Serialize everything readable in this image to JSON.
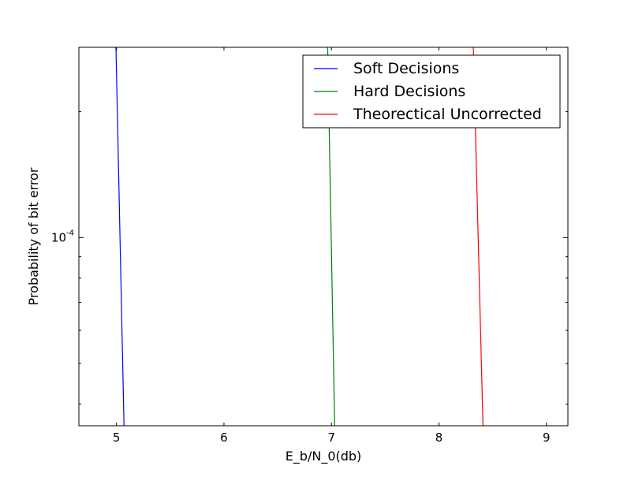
{
  "chart_data": {
    "type": "line",
    "title": "",
    "xlabel": "E_b/N_0(db)",
    "ylabel": "Probability of bit error",
    "y_scale": "log",
    "xlim": [
      4.65,
      9.2
    ],
    "ylim": [
      3.55e-05,
      0.000285
    ],
    "grid": false,
    "legend_position": "top-right",
    "x_ticks": [
      {
        "value": 5,
        "label": "5"
      },
      {
        "value": 6,
        "label": "6"
      },
      {
        "value": 7,
        "label": "7"
      },
      {
        "value": 8,
        "label": "8"
      },
      {
        "value": 9,
        "label": "9"
      }
    ],
    "y_ticks": [
      {
        "value": 0.0001,
        "base": "10",
        "exp": "-4"
      }
    ],
    "series": [
      {
        "name": "Soft Decisions",
        "color": "#0000ff",
        "x": [
          4.995,
          5.07
        ],
        "y": [
          0.000285,
          3.55e-05
        ]
      },
      {
        "name": "Hard Decisions",
        "color": "#008000",
        "x": [
          6.965,
          7.03
        ],
        "y": [
          0.000285,
          3.55e-05
        ]
      },
      {
        "name": "Theorectical Uncorrected",
        "color": "#ff0000",
        "x": [
          8.32,
          8.41
        ],
        "y": [
          0.000285,
          3.55e-05
        ]
      }
    ]
  }
}
